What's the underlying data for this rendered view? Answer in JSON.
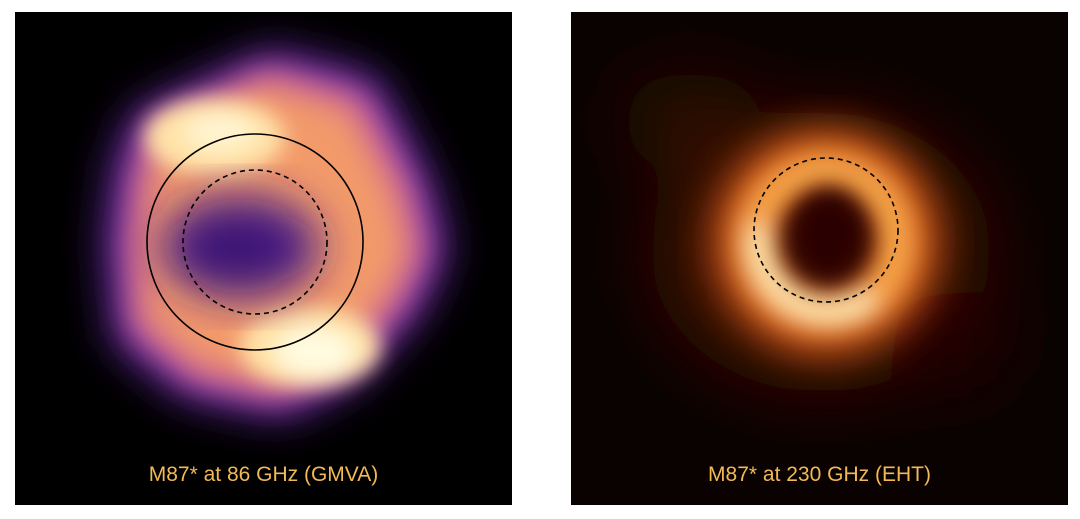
{
  "panels": [
    {
      "caption": "M87* at 86 GHz (GMVA)",
      "colormap": [
        "#000000",
        "#2a0c5c",
        "#6a2cb0",
        "#c45a9a",
        "#f39a6a",
        "#ffe3a8",
        "#fffbe0"
      ],
      "overlays": [
        "solid-circle",
        "dashed-circle"
      ]
    },
    {
      "caption": "M87* at 230 GHz (EHT)",
      "colormap": [
        "#0a0200",
        "#3a0a02",
        "#8a2a05",
        "#d8601a",
        "#f7a54a",
        "#ffe7b0"
      ],
      "overlays": [
        "dashed-circle"
      ]
    }
  ]
}
